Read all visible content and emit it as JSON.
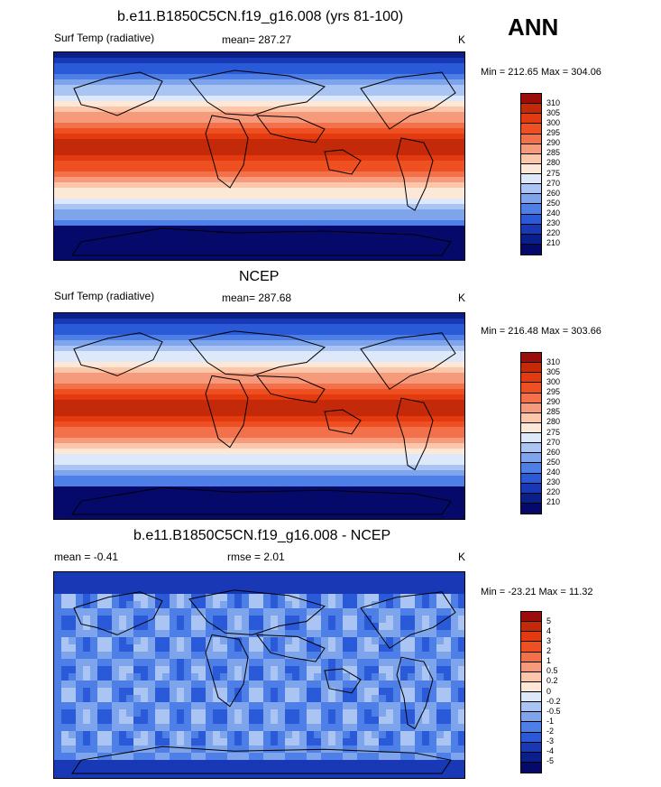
{
  "season": "ANN",
  "chart_data": [
    {
      "type": "heatmap",
      "title": "b.e11.B1850C5CN.f19_g16.008 (yrs 81-100)",
      "variable": "Surf Temp (radiative)",
      "mean_label": "mean=",
      "mean": "287.27",
      "units": "K",
      "minmax": "Min = 212.65 Max = 304.06",
      "colorbar_levels": [
        "310",
        "305",
        "300",
        "295",
        "290",
        "285",
        "280",
        "275",
        "270",
        "260",
        "250",
        "240",
        "230",
        "220",
        "210"
      ],
      "colorbar_colors": [
        "#9b0d0a",
        "#c42a0a",
        "#e33a10",
        "#ee5022",
        "#f2704a",
        "#f59a7a",
        "#fbc6aa",
        "#fde8d8",
        "#dde8fb",
        "#aac4f3",
        "#7ea5ec",
        "#4e7fe6",
        "#2a5ad8",
        "#1838b5",
        "#0a1f8a",
        "#050a6a"
      ]
    },
    {
      "type": "heatmap",
      "title": "NCEP",
      "variable": "Surf Temp (radiative)",
      "mean_label": "mean=",
      "mean": "287.68",
      "units": "K",
      "minmax": "Min = 216.48 Max = 303.66",
      "colorbar_levels": [
        "310",
        "305",
        "300",
        "295",
        "290",
        "285",
        "280",
        "275",
        "270",
        "260",
        "250",
        "240",
        "230",
        "220",
        "210"
      ],
      "colorbar_colors": [
        "#9b0d0a",
        "#c42a0a",
        "#e33a10",
        "#ee5022",
        "#f2704a",
        "#f59a7a",
        "#fbc6aa",
        "#fde8d8",
        "#dde8fb",
        "#aac4f3",
        "#7ea5ec",
        "#4e7fe6",
        "#2a5ad8",
        "#1838b5",
        "#0a1f8a",
        "#050a6a"
      ]
    },
    {
      "type": "heatmap",
      "title": "b.e11.B1850C5CN.f19_g16.008 - NCEP",
      "mean_label": "mean =",
      "mean": "-0.41",
      "rmse_label": "rmse =",
      "rmse": "2.01",
      "units": "K",
      "minmax": "Min = -23.21 Max =  11.32",
      "colorbar_levels": [
        "5",
        "4",
        "3",
        "2",
        "1",
        "0.5",
        "0.2",
        "0",
        "-0.2",
        "-0.5",
        "-1",
        "-2",
        "-3",
        "-4",
        "-5"
      ],
      "colorbar_colors": [
        "#9b0d0a",
        "#c42a0a",
        "#e33a10",
        "#ee5022",
        "#f2704a",
        "#f59a7a",
        "#fbc6aa",
        "#fde8d8",
        "#dde8fb",
        "#aac4f3",
        "#7ea5ec",
        "#4e7fe6",
        "#2a5ad8",
        "#1838b5",
        "#0a1f8a",
        "#050a6a"
      ]
    }
  ]
}
